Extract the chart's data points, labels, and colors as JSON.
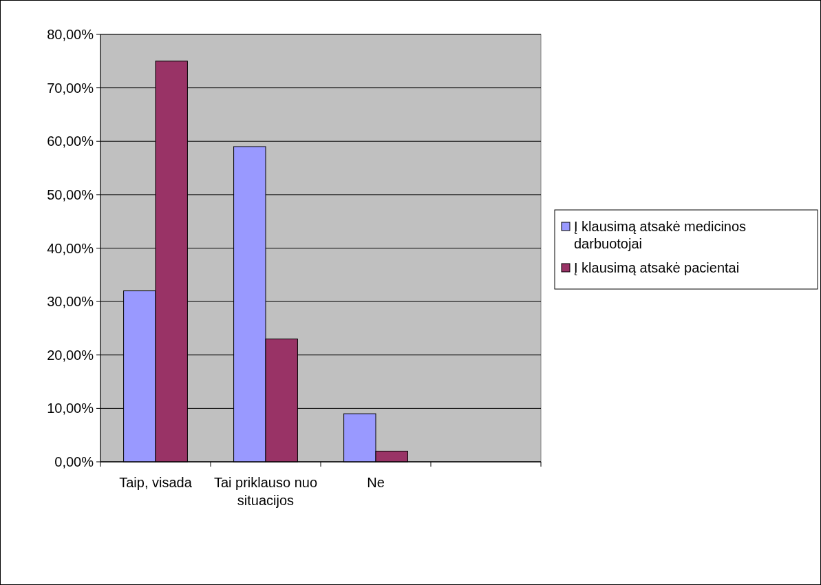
{
  "chart_data": {
    "type": "bar",
    "categories": [
      "Taip, visada",
      "Tai priklauso nuo situacijos",
      "Ne",
      null
    ],
    "series": [
      {
        "name": "Į klausimą atsakė medicinos darbuotojai",
        "color": "#9999ff",
        "values": [
          32,
          59,
          9,
          null
        ]
      },
      {
        "name": "Į klausimą atsakė pacientai",
        "color": "#993366",
        "values": [
          75,
          23,
          2,
          null
        ]
      }
    ],
    "ylim": [
      0,
      80
    ],
    "yticks": [
      {
        "value": 0,
        "label": "0,00%"
      },
      {
        "value": 10,
        "label": "10,00%"
      },
      {
        "value": 20,
        "label": "20,00%"
      },
      {
        "value": 30,
        "label": "30,00%"
      },
      {
        "value": 40,
        "label": "40,00%"
      },
      {
        "value": 50,
        "label": "50,00%"
      },
      {
        "value": 60,
        "label": "60,00%"
      },
      {
        "value": 70,
        "label": "70,00%"
      },
      {
        "value": 80,
        "label": "80,00%"
      }
    ],
    "grid": "y",
    "legend": "right"
  }
}
